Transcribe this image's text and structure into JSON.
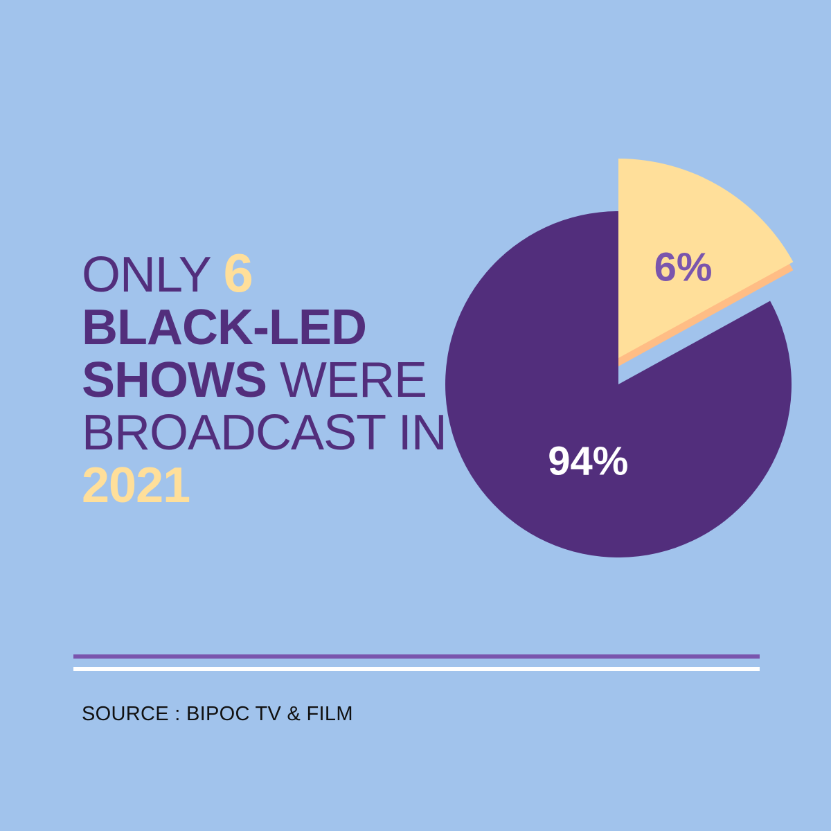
{
  "headline": {
    "line1_word": "ONLY",
    "line1_number": "6",
    "line2": "BLACK-LED",
    "line3_bold": "SHOWS",
    "line3_light": "WERE",
    "line4": "BROADCAST IN",
    "line5": "2021"
  },
  "source": "SOURCE : BIPOC TV & FILM",
  "colors": {
    "background": "#a1c3ec",
    "purple": "#522e7c",
    "yellow": "#ffdf9a",
    "orange_edge": "#ffbd85",
    "rule_purple": "#7a55ad",
    "rule_white": "#ffffff"
  },
  "chart_data": {
    "type": "pie",
    "slices": [
      {
        "label": "6%",
        "value": 6,
        "color": "#ffdf9a",
        "label_color": "#7a55ad",
        "exploded": true
      },
      {
        "label": "94%",
        "value": 94,
        "color": "#522e7c",
        "label_color": "#ffffff",
        "exploded": false
      }
    ]
  }
}
